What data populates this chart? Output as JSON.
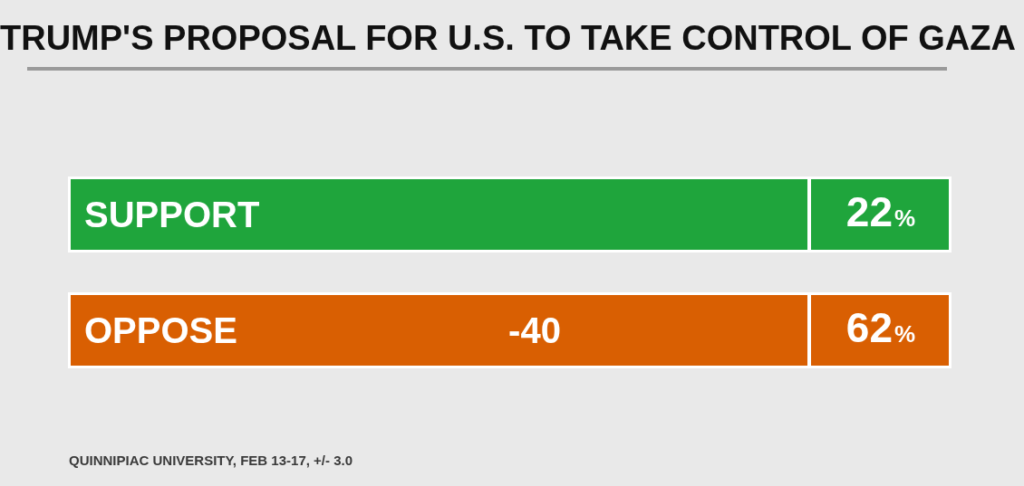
{
  "chart_data": {
    "type": "other",
    "title": "TRUMP'S PROPOSAL FOR U.S. TO TAKE CONTROL OF GAZA",
    "categories": [
      "SUPPORT",
      "OPPOSE"
    ],
    "values": [
      22,
      62
    ],
    "value_labels": [
      "22%",
      "62%"
    ],
    "colors": [
      "#1fa53c",
      "#d95f02"
    ],
    "annotations": [
      {
        "text": "-40",
        "x": "OPPOSE"
      },
      "QUINNIPIAC UNIVERSITY, FEB 13-17, +/- 3.0"
    ]
  }
}
